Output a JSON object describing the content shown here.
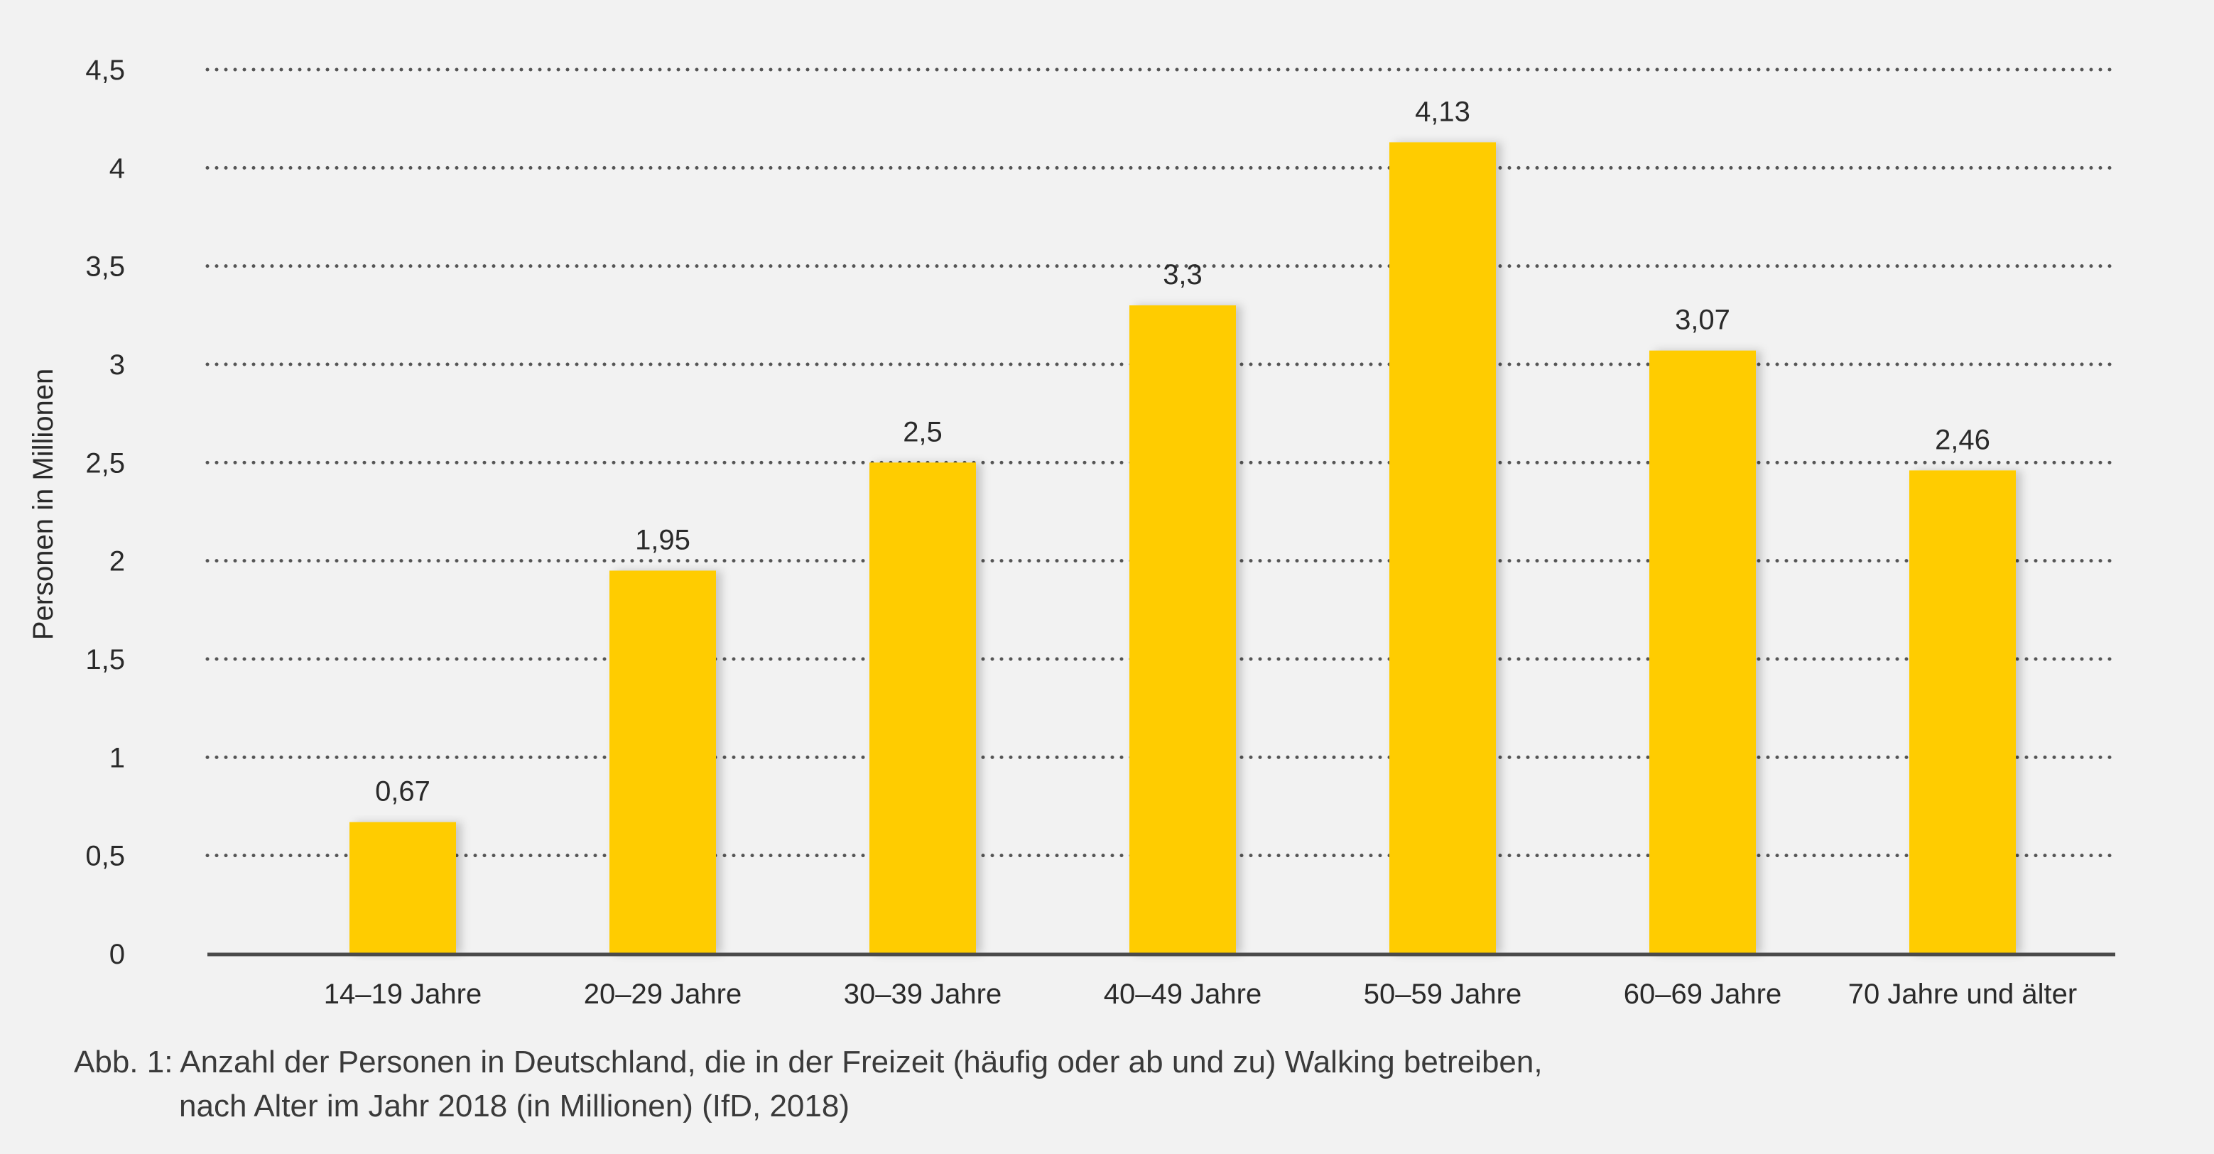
{
  "chart_data": {
    "type": "bar",
    "categories": [
      "14–19 Jahre",
      "20–29 Jahre",
      "30–39 Jahre",
      "40–49 Jahre",
      "50–59 Jahre",
      "60–69 Jahre",
      "70 Jahre und älter"
    ],
    "values": [
      0.67,
      1.95,
      2.5,
      3.3,
      4.13,
      3.07,
      2.46
    ],
    "value_labels": [
      "0,67",
      "1,95",
      "2,5",
      "3,3",
      "4,13",
      "3,07",
      "2,46"
    ],
    "ylabel": "Personen in Millionen",
    "xlabel": "",
    "ylim": [
      0,
      4.5
    ],
    "yticks": [
      0,
      0.5,
      1,
      1.5,
      2,
      2.5,
      3,
      3.5,
      4,
      4.5
    ],
    "ytick_labels": [
      "0",
      "0,5",
      "1",
      "1,5",
      "2",
      "2,5",
      "3",
      "3,5",
      "4",
      "4,5"
    ],
    "grid": "dotted horizontal",
    "bar_color": "#ffcc00",
    "axis_color": "#4a4a4a",
    "grid_color": "#555555",
    "background": "#f2f2f2"
  },
  "caption": {
    "line1": "Abb. 1: Anzahl der Personen in Deutschland, die in der Freizeit (häufig oder ab und zu) Walking betreiben,",
    "line2": "nach Alter im Jahr 2018 (in Millionen) (IfD, 2018)"
  }
}
